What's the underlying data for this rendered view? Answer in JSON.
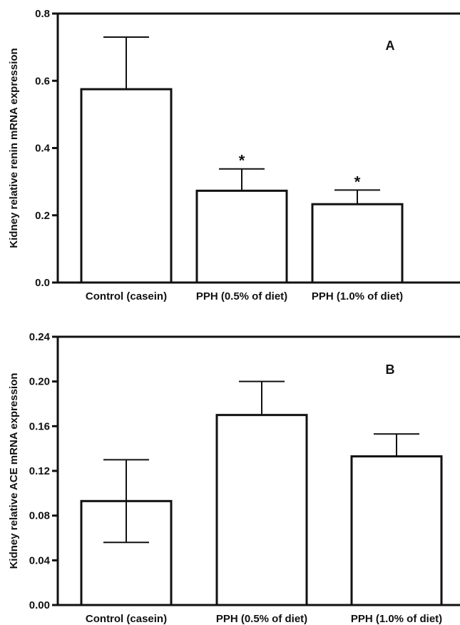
{
  "chart_data": [
    {
      "type": "bar",
      "panel_label": "A",
      "categories": [
        "Control (casein)",
        "PPH (0.5% of diet)",
        "PPH (1.0% of diet)"
      ],
      "values": [
        0.575,
        0.273,
        0.233
      ],
      "error_upper": [
        0.73,
        0.338,
        0.275
      ],
      "error_lower": [
        null,
        null,
        null
      ],
      "significance": [
        "",
        "*",
        "*"
      ],
      "ylabel": "Kidney relative renin mRNA expression",
      "ylim": [
        0,
        0.8
      ],
      "yticks": [
        "0.0",
        "0.2",
        "0.4",
        "0.6",
        "0.8"
      ],
      "grid": false
    },
    {
      "type": "bar",
      "panel_label": "B",
      "categories": [
        "Control (casein)",
        "PPH (0.5% of diet)",
        "PPH (1.0% of diet)"
      ],
      "values": [
        0.093,
        0.17,
        0.133
      ],
      "error_upper": [
        0.13,
        0.2,
        0.153
      ],
      "error_lower": [
        0.056,
        null,
        null
      ],
      "significance": [
        "",
        "",
        ""
      ],
      "ylabel": "Kidney relative ACE mRNA expression",
      "ylim": [
        0,
        0.24
      ],
      "yticks": [
        "0.00",
        "0.04",
        "0.08",
        "0.12",
        "0.16",
        "0.20",
        "0.24"
      ],
      "grid": false
    }
  ]
}
